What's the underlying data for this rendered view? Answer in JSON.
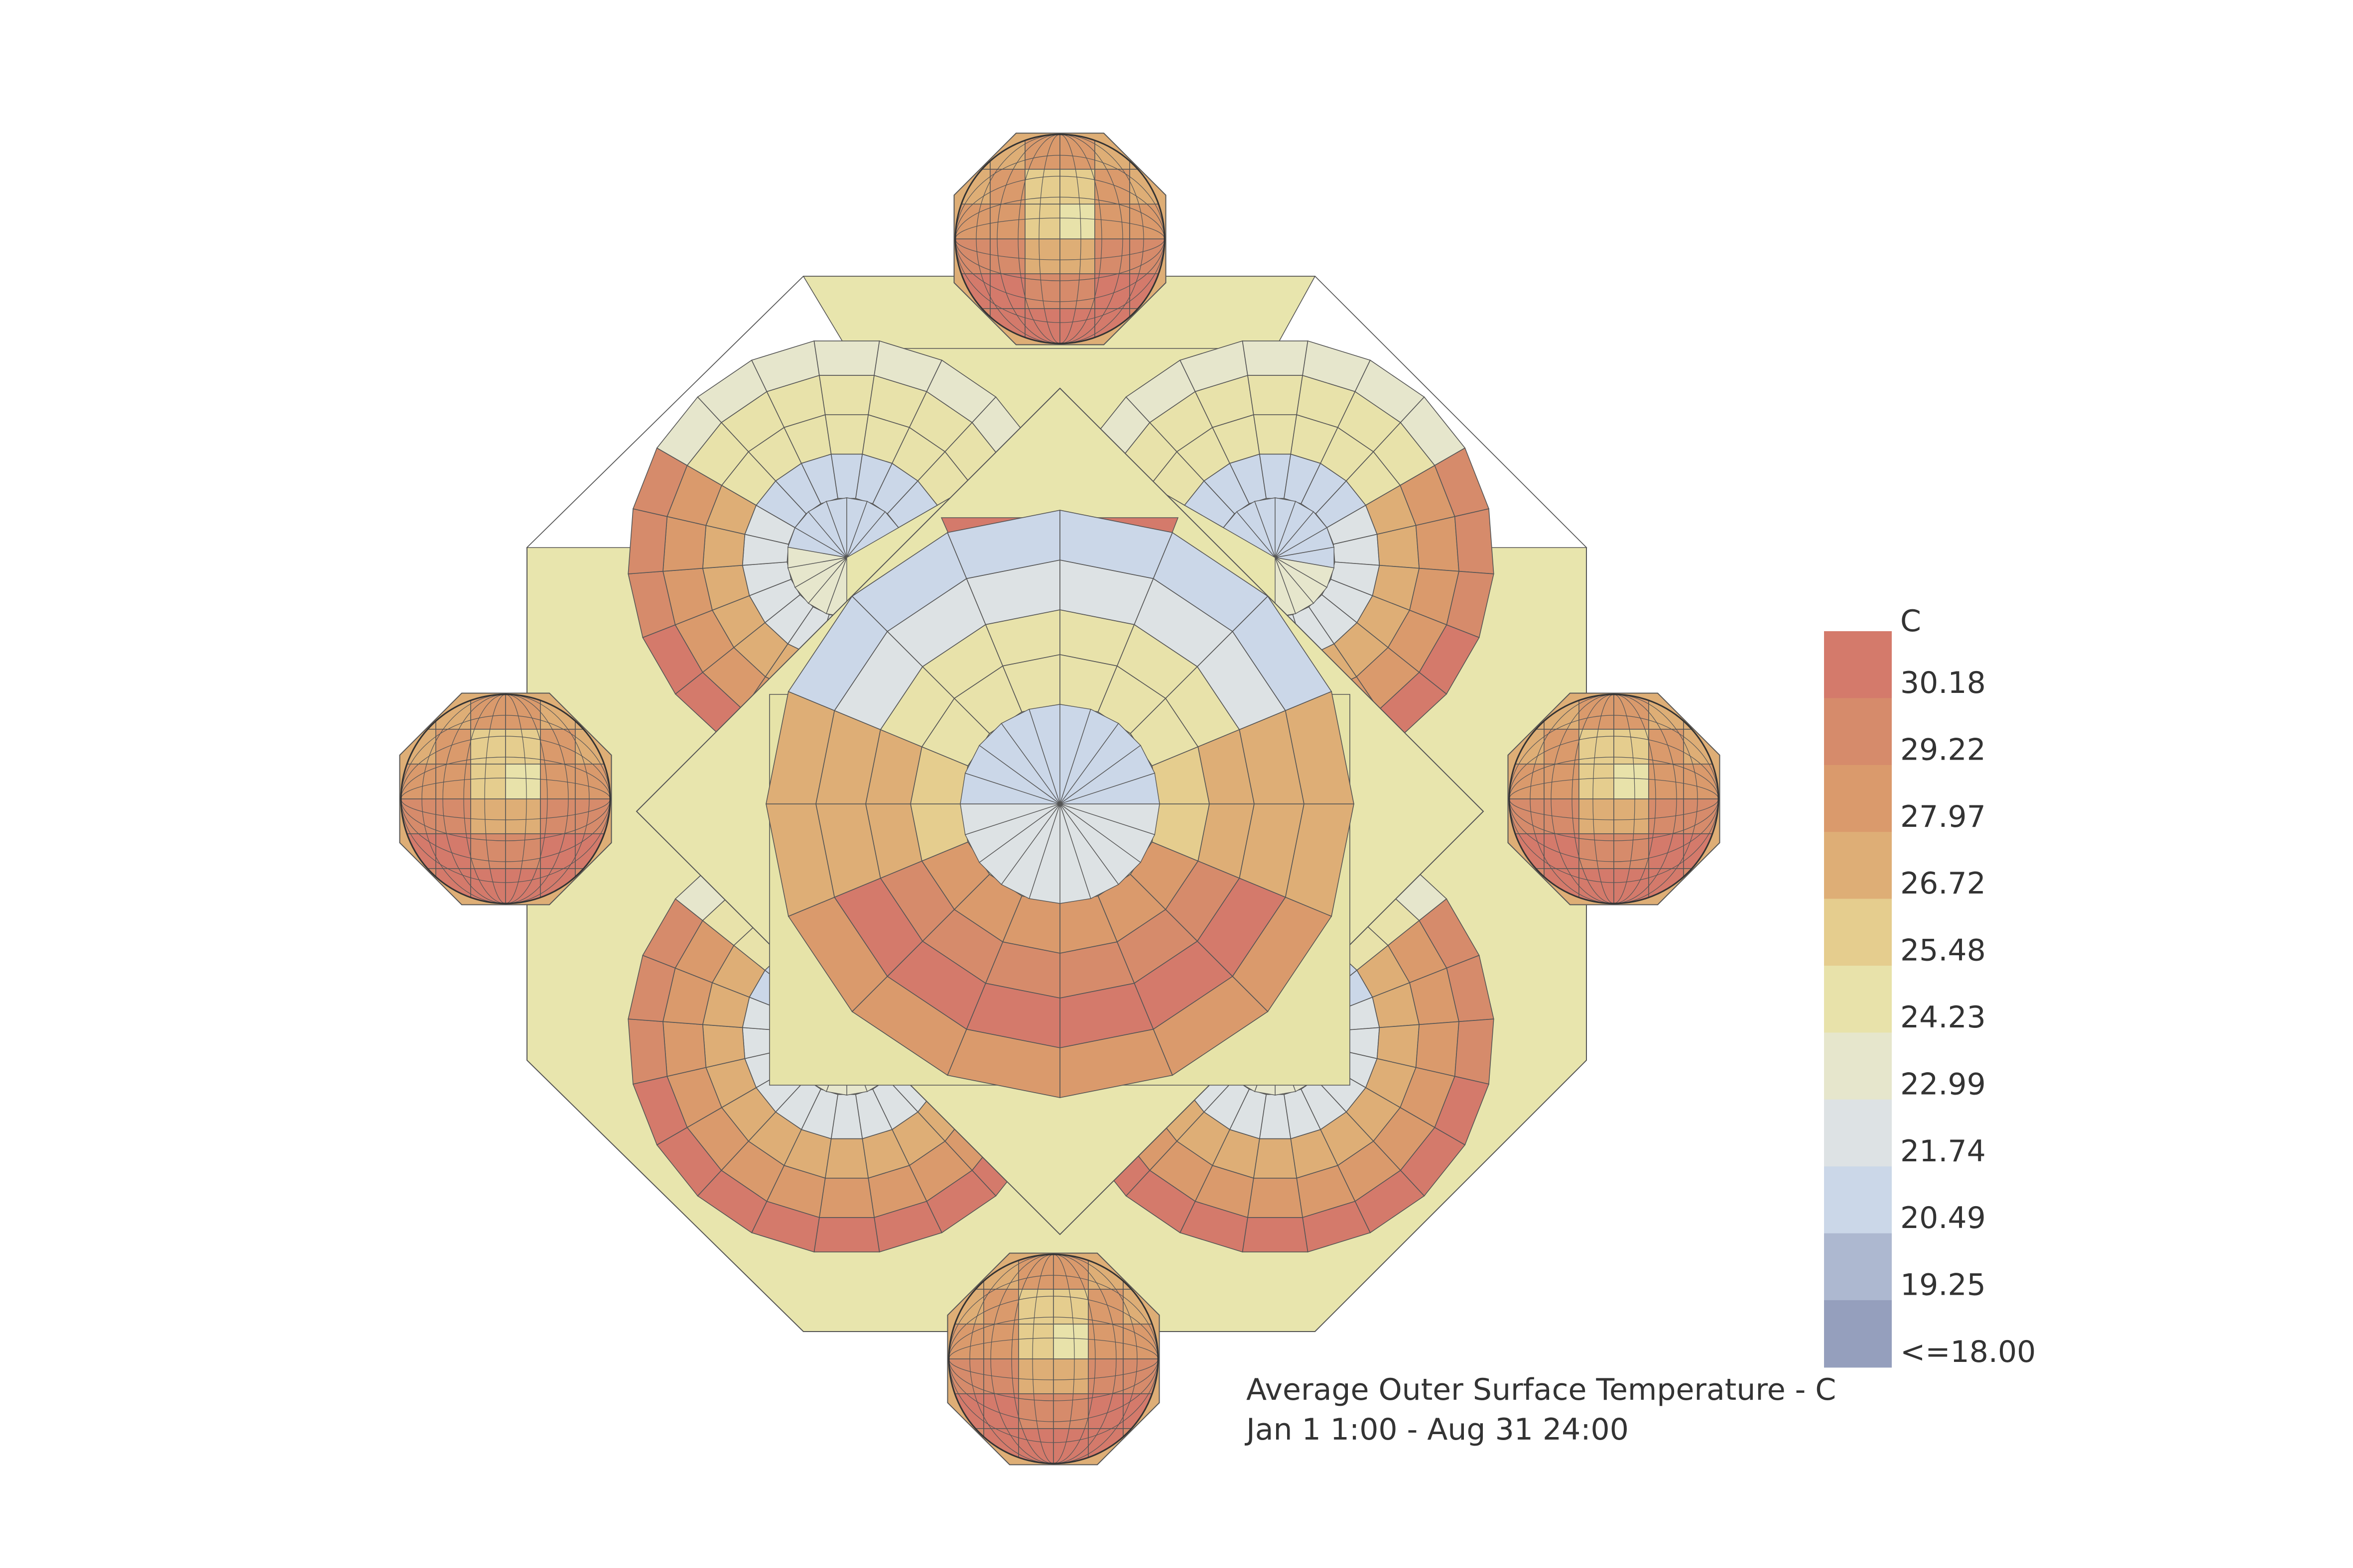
{
  "legend": {
    "unit": "C",
    "labels": [
      "30.18",
      "29.22",
      "27.97",
      "26.72",
      "25.48",
      "24.23",
      "22.99",
      "21.74",
      "20.49",
      "19.25",
      "<=18.00"
    ],
    "colors": [
      "#d47a6b",
      "#d68b6b",
      "#da9a6c",
      "#deae76",
      "#e5cd8e",
      "#e8e2aa",
      "#e6e6cc",
      "#dde2e4",
      "#cbd7e8",
      "#adb8d0",
      "#959fbd"
    ]
  },
  "caption": {
    "line1": "Average Outer Surface Temperature  - C",
    "line2": "Jan 1 1:00 - Aug 31 24:00"
  },
  "palette": {
    "base_fill": "#e8e5ad",
    "outline": "#555555",
    "shadow": "#7a7a62"
  }
}
